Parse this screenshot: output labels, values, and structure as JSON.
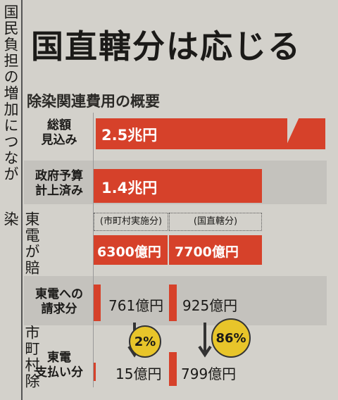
{
  "side_text": {
    "lines": [
      "国民負担の増加につなが",
      "東電が賠償部は市町村除染"
    ]
  },
  "header": {
    "title": "国直轄分は応じる",
    "subtitle": "除染関連費用の概要"
  },
  "rows": [
    {
      "label": [
        "総額",
        "見込み"
      ],
      "amount": "2.5兆円"
    },
    {
      "label": [
        "政府予算",
        "計上済み"
      ],
      "amount": "1.4兆円",
      "split": [
        {
          "name": "(市町村実施分)",
          "amount": "6300億円"
        },
        {
          "name": "(国直轄分)",
          "amount": "7700億円"
        }
      ]
    },
    {
      "label": [
        "東電への",
        "請求分"
      ],
      "amounts": [
        "761億円",
        "925億円"
      ]
    },
    {
      "label": [
        "東電",
        "支払い分"
      ],
      "amounts": [
        "15億円",
        "799億円"
      ]
    }
  ],
  "rates": [
    "2%",
    "86%"
  ]
}
